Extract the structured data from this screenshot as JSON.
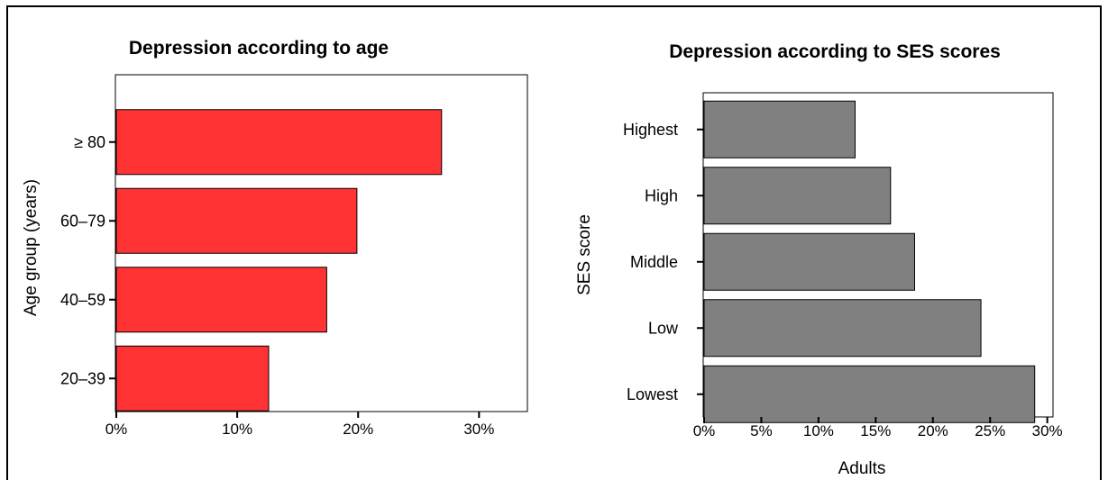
{
  "chart_data": [
    {
      "type": "bar",
      "orientation": "horizontal",
      "title": "Depression according to age",
      "xlabel": "",
      "ylabel": "Age group (years)",
      "categories": [
        "20–39",
        "40–59",
        "60–79",
        "≥ 80"
      ],
      "values": [
        12.6,
        17.4,
        19.9,
        26.9
      ],
      "xlim": [
        0,
        34
      ],
      "xticks": [
        "0%",
        "10%",
        "20%",
        "30%"
      ],
      "xtick_values": [
        0,
        10,
        20,
        30
      ],
      "bar_color": "#ff3333",
      "grid": false
    },
    {
      "type": "bar",
      "orientation": "horizontal",
      "title": "Depression according to SES scores",
      "xlabel": "Adults",
      "ylabel": "SES score",
      "categories": [
        "Lowest",
        "Low",
        "Middle",
        "High",
        "Highest"
      ],
      "values": [
        28.9,
        24.2,
        18.4,
        16.3,
        13.2
      ],
      "xlim": [
        0,
        30.5
      ],
      "xticks": [
        "0%",
        "5%",
        "10%",
        "15%",
        "20%",
        "25%",
        "30%"
      ],
      "xtick_values": [
        0,
        5,
        10,
        15,
        20,
        25,
        30
      ],
      "bar_color": "#808080",
      "grid": false
    }
  ]
}
